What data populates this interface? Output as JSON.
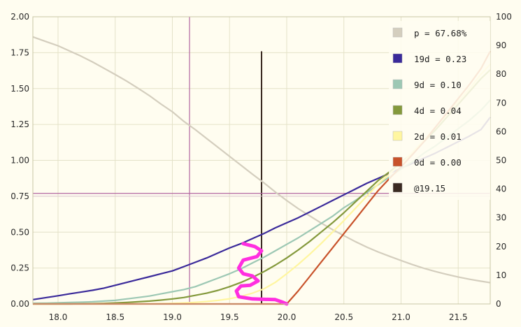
{
  "chart_data": {
    "type": "line",
    "title": "",
    "xlabel": "",
    "ylabel": "",
    "xlim": [
      17.78,
      21.78
    ],
    "ylim": [
      0,
      2
    ],
    "y2lim": [
      0,
      100
    ],
    "x_ticks": [
      "18.0",
      "18.5",
      "19.0",
      "19.5",
      "20.0",
      "20.5",
      "21.0",
      "21.5"
    ],
    "x_tick_values": [
      18.0,
      18.5,
      19.0,
      19.5,
      20.0,
      20.5,
      21.0,
      21.5
    ],
    "y_ticks": [
      "0.00",
      "0.25",
      "0.50",
      "0.75",
      "1.00",
      "1.25",
      "1.50",
      "1.75",
      "2.00"
    ],
    "y_tick_values": [
      0,
      0.25,
      0.5,
      0.75,
      1.0,
      1.25,
      1.5,
      1.75,
      2.0
    ],
    "y2_ticks": [
      "0",
      "10",
      "20",
      "30",
      "40",
      "50",
      "60",
      "70",
      "80",
      "90",
      "100"
    ],
    "y2_tick_values": [
      0,
      10,
      20,
      30,
      40,
      50,
      60,
      70,
      80,
      90,
      100
    ],
    "grid": true,
    "legend_position": "top-right",
    "x_fine": [
      17.78,
      17.9,
      18.0,
      18.1,
      18.2,
      18.3,
      18.4,
      18.5,
      18.6,
      18.7,
      18.8,
      18.9,
      19.0,
      19.1,
      19.2,
      19.3,
      19.4,
      19.5,
      19.6,
      19.7,
      19.8,
      19.9,
      20.0,
      20.1,
      20.2,
      20.3,
      20.4,
      20.5,
      20.6,
      20.7,
      20.8,
      20.9,
      21.0,
      21.1,
      21.2,
      21.3,
      21.4,
      21.5,
      21.6,
      21.7,
      21.78
    ],
    "series": [
      {
        "name": "p = 67.68%",
        "legend": "p = 67.68%",
        "axis": "right",
        "color": "#d4cebe",
        "values": [
          93,
          91.3,
          89.9,
          88.1,
          86.3,
          84.3,
          82.1,
          79.9,
          77.6,
          75.1,
          72.5,
          69.6,
          66.9,
          63.6,
          60.7,
          57.6,
          54.5,
          51.4,
          48.3,
          45.2,
          42.2,
          39.0,
          36.0,
          33.2,
          30.7,
          28.2,
          25.9,
          23.8,
          21.7,
          19.8,
          18.1,
          16.6,
          15.1,
          13.7,
          12.4,
          11.3,
          10.3,
          9.4,
          8.6,
          7.9,
          7.4
        ]
      },
      {
        "name": "19d = 0.23",
        "legend": "19d = 0.23",
        "axis": "left",
        "color": "#3a2a9a",
        "values": [
          0.03,
          0.045,
          0.057,
          0.07,
          0.082,
          0.095,
          0.11,
          0.13,
          0.15,
          0.17,
          0.19,
          0.21,
          0.23,
          0.26,
          0.29,
          0.32,
          0.355,
          0.39,
          0.42,
          0.455,
          0.49,
          0.53,
          0.565,
          0.6,
          0.64,
          0.68,
          0.72,
          0.76,
          0.8,
          0.84,
          0.875,
          0.91,
          0.945,
          0.98,
          1.015,
          1.05,
          1.09,
          1.13,
          1.17,
          1.215,
          1.3
        ]
      },
      {
        "name": "9d = 0.10",
        "legend": "9d = 0.10",
        "axis": "left",
        "color": "#9dc8b4",
        "values": [
          0.005,
          0.006,
          0.008,
          0.01,
          0.012,
          0.015,
          0.02,
          0.025,
          0.035,
          0.045,
          0.055,
          0.07,
          0.085,
          0.1,
          0.12,
          0.15,
          0.18,
          0.21,
          0.245,
          0.285,
          0.325,
          0.37,
          0.415,
          0.46,
          0.51,
          0.56,
          0.61,
          0.67,
          0.72,
          0.775,
          0.83,
          0.885,
          0.94,
          0.99,
          1.05,
          1.1,
          1.16,
          1.22,
          1.28,
          1.35,
          1.42
        ]
      },
      {
        "name": "4d = 0.04",
        "legend": "4d = 0.04",
        "axis": "left",
        "color": "#84993c",
        "values": [
          0,
          0,
          0,
          0,
          0.001,
          0.002,
          0.004,
          0.007,
          0.01,
          0.015,
          0.02,
          0.027,
          0.035,
          0.045,
          0.06,
          0.075,
          0.095,
          0.12,
          0.15,
          0.185,
          0.225,
          0.27,
          0.32,
          0.375,
          0.435,
          0.5,
          0.565,
          0.635,
          0.71,
          0.785,
          0.86,
          0.92,
          0.985,
          1.05,
          1.13,
          1.21,
          1.3,
          1.39,
          1.48,
          1.57,
          1.63
        ]
      },
      {
        "name": "2d = 0.01",
        "legend": "2d = 0.01",
        "axis": "left",
        "color": "#fff6a0",
        "values": [
          0,
          0,
          0,
          0,
          0,
          0,
          0,
          0,
          0,
          0,
          0.001,
          0.002,
          0.004,
          0.007,
          0.011,
          0.017,
          0.025,
          0.036,
          0.052,
          0.075,
          0.105,
          0.15,
          0.21,
          0.275,
          0.345,
          0.42,
          0.5,
          0.58,
          0.665,
          0.75,
          0.835,
          0.905,
          0.975,
          1.055,
          1.14,
          1.23,
          1.32,
          1.41,
          1.5,
          1.6,
          1.67
        ]
      },
      {
        "name": "0d = 0.00",
        "legend": "0d = 0.00",
        "axis": "left",
        "color": "#c8522a",
        "values": [
          0,
          0,
          0,
          0,
          0,
          0,
          0,
          0,
          0,
          0,
          0,
          0,
          0,
          0,
          0,
          0,
          0,
          0,
          0,
          0,
          0,
          0,
          0,
          0.09,
          0.19,
          0.29,
          0.39,
          0.49,
          0.59,
          0.69,
          0.79,
          0.875,
          0.955,
          1.04,
          1.13,
          1.23,
          1.33,
          1.43,
          1.53,
          1.64,
          1.76
        ]
      }
    ],
    "markers": [
      {
        "name": "@19.15",
        "legend": "@19.15",
        "type": "vertical",
        "x": 19.78,
        "y_top": 1.76,
        "color": "#3a2a22"
      },
      {
        "name": "vertical-guide",
        "type": "vertical",
        "x": 19.15,
        "color": "#b266a0"
      },
      {
        "name": "horizontal-guide",
        "type": "horizontal",
        "y": 0.77,
        "color": "#b266a0"
      }
    ],
    "annotation": {
      "name": "freehand-scribble",
      "color": "#ff2ee0",
      "points": [
        [
          19.62,
          0.42
        ],
        [
          19.72,
          0.4
        ],
        [
          19.78,
          0.37
        ],
        [
          19.74,
          0.33
        ],
        [
          19.62,
          0.305
        ],
        [
          19.58,
          0.25
        ],
        [
          19.62,
          0.21
        ],
        [
          19.7,
          0.195
        ],
        [
          19.75,
          0.16
        ],
        [
          19.68,
          0.13
        ],
        [
          19.6,
          0.125
        ],
        [
          19.56,
          0.09
        ],
        [
          19.58,
          0.05
        ],
        [
          19.7,
          0.035
        ],
        [
          19.9,
          0.03
        ],
        [
          19.97,
          0.01
        ],
        [
          20.0,
          0.0
        ]
      ]
    }
  }
}
